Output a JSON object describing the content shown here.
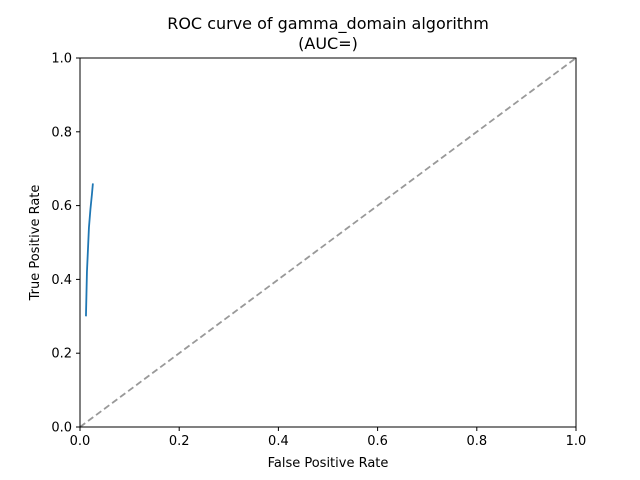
{
  "chart_data": {
    "type": "line",
    "title": "ROC curve of gamma_domain algorithm",
    "subtitle": "(AUC=)",
    "xlabel": "False Positive Rate",
    "ylabel": "True Positive Rate",
    "xlim": [
      0,
      1
    ],
    "ylim": [
      0,
      1
    ],
    "xticks": [
      "0.0",
      "0.2",
      "0.4",
      "0.6",
      "0.8",
      "1.0"
    ],
    "yticks": [
      "0.0",
      "0.2",
      "0.4",
      "0.6",
      "0.8",
      "1.0"
    ],
    "grid": false,
    "legend": "none",
    "series": [
      {
        "x": [
          0.012,
          0.013,
          0.014,
          0.016,
          0.018,
          0.021,
          0.024,
          0.026
        ],
        "y": [
          0.3,
          0.36,
          0.42,
          0.48,
          0.54,
          0.59,
          0.63,
          0.66
        ],
        "color": "#1f77b4",
        "style": "solid"
      },
      {
        "x": [
          0,
          1
        ],
        "y": [
          0,
          1
        ],
        "color": "#999999",
        "style": "dashed"
      }
    ]
  }
}
